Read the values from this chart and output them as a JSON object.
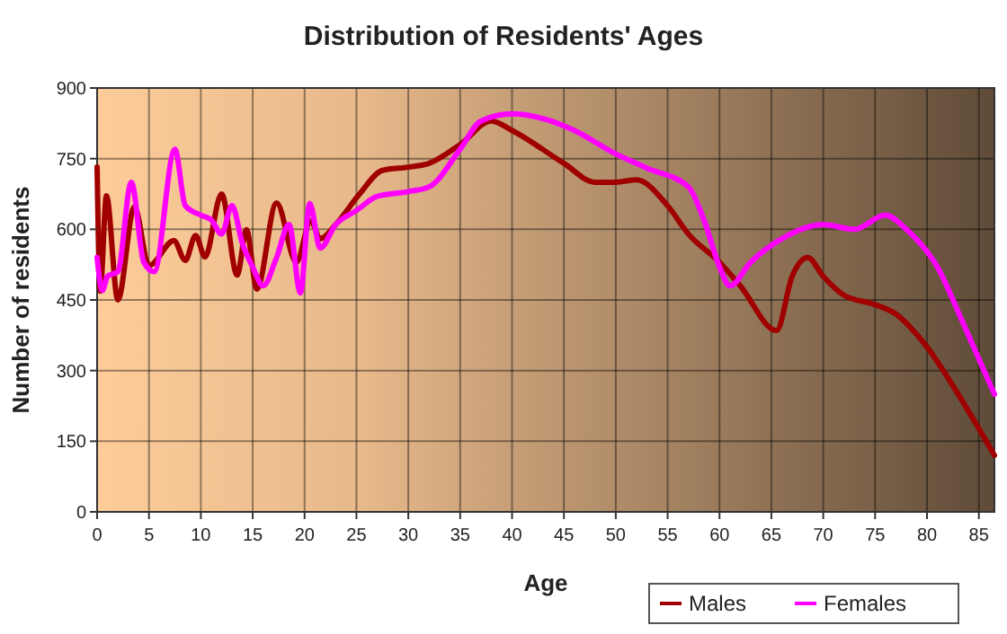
{
  "chart_data": {
    "type": "line",
    "title": "Distribution of Residents' Ages",
    "xlabel": "Age",
    "ylabel": "Number of residents",
    "xlim": [
      0,
      86.5
    ],
    "xticks": [
      0,
      5,
      10,
      15,
      20,
      25,
      30,
      35,
      40,
      45,
      50,
      55,
      60,
      65,
      70,
      75,
      80,
      85
    ],
    "ylim": [
      0,
      900
    ],
    "yticks": [
      0,
      150,
      300,
      450,
      600,
      750,
      900
    ],
    "grid": true,
    "legend": "bottom right",
    "marker": "none",
    "line_style": "solid",
    "series": [
      {
        "name": "Males",
        "color": "#a00000",
        "x": [
          0,
          0.3,
          0.9,
          2,
          3.6,
          5,
          7.4,
          8.5,
          9.5,
          10.4,
          12,
          13.5,
          14.4,
          15.4,
          17.3,
          19.2,
          20.6,
          21.5,
          23,
          25.3,
          27.5,
          30,
          32,
          35,
          38,
          40,
          45,
          48,
          50,
          52,
          55,
          57,
          60,
          62,
          65.5,
          67,
          68.5,
          70,
          72,
          75,
          77,
          80,
          83,
          86.5
        ],
        "values": [
          732,
          469,
          671,
          450,
          648,
          523,
          576,
          534,
          587,
          541,
          675,
          503,
          599,
          473,
          656,
          530,
          618,
          580,
          610,
          675,
          725,
          732,
          740,
          780,
          830,
          810,
          740,
          700,
          700,
          705,
          650,
          590,
          530,
          480,
          385,
          500,
          540,
          500,
          460,
          440,
          420,
          350,
          250,
          120
        ]
      },
      {
        "name": "Females",
        "color": "#ff00ff",
        "x": [
          0,
          0.5,
          1,
          2,
          3.3,
          4.5,
          5.5,
          7.5,
          8.5,
          10,
          11,
          12,
          13,
          14,
          15,
          16,
          17.3,
          18.5,
          19.6,
          20.5,
          21.5,
          23,
          25,
          27,
          30,
          32,
          35,
          37,
          40,
          43,
          46,
          50,
          53,
          57,
          58.5,
          60,
          61,
          63,
          66,
          70,
          73,
          76,
          78,
          81,
          83.5,
          86.5
        ],
        "values": [
          540,
          470,
          500,
          510,
          700,
          530,
          510,
          770,
          650,
          630,
          620,
          590,
          650,
          570,
          520,
          480,
          540,
          610,
          465,
          655,
          560,
          610,
          640,
          670,
          680,
          690,
          770,
          830,
          845,
          835,
          810,
          760,
          730,
          690,
          620,
          520,
          480,
          530,
          580,
          610,
          600,
          630,
          600,
          520,
          400,
          250
        ]
      }
    ]
  }
}
